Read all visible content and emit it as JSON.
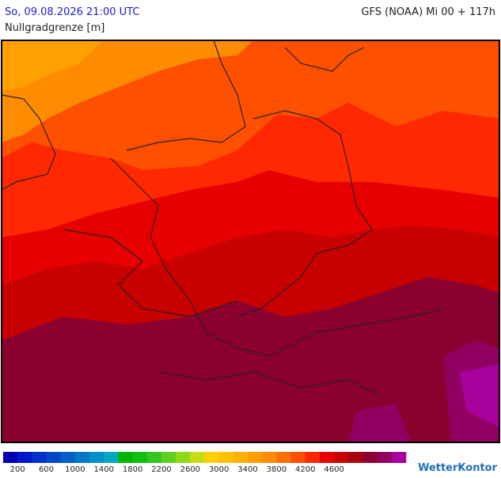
{
  "header": {
    "datetime": "So, 09.08.2026 21:00 UTC",
    "model": "GFS (NOAA) Mi 00 + 117h",
    "parameter": "Nullgradgrenze [m]"
  },
  "legend": {
    "labels": [
      200,
      600,
      1000,
      1400,
      1800,
      2200,
      2600,
      3000,
      3400,
      3800,
      4200,
      4600
    ],
    "colors": [
      "#0000b4",
      "#0018c8",
      "#0030cc",
      "#0048c8",
      "#0060c8",
      "#0078c8",
      "#0090c8",
      "#00a8c0",
      "#00b400",
      "#10c010",
      "#30c820",
      "#60d020",
      "#90d818",
      "#c8dc10",
      "#ffd000",
      "#ffc000",
      "#ffb000",
      "#ffa000",
      "#ff8c00",
      "#ff7000",
      "#ff5000",
      "#ff2800",
      "#e60000",
      "#c80000",
      "#aa0010",
      "#8c0030",
      "#900060",
      "#a8009a"
    ]
  },
  "logo": "WetterKontor"
}
